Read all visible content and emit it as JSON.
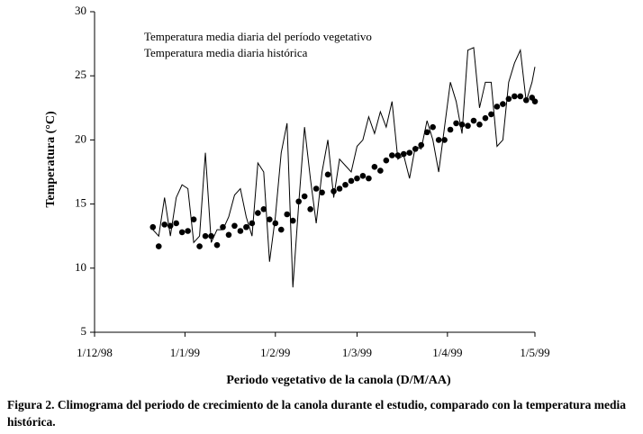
{
  "chart_data": {
    "type": "line",
    "y_label": "Temperatura (°C)",
    "x_label": "Periodo vegetativo de la canola (D/M/AA)",
    "caption": "Figura 2. Climograma del periodo de crecimiento de la canola durante el estudio, comparado con la temperatura media histórica.",
    "x": [
      "1998-12-21",
      "1998-12-23",
      "1998-12-25",
      "1998-12-27",
      "1998-12-29",
      "1998-12-31",
      "1999-01-02",
      "1999-01-04",
      "1999-01-06",
      "1999-01-08",
      "1999-01-10",
      "1999-01-12",
      "1999-01-14",
      "1999-01-16",
      "1999-01-18",
      "1999-01-20",
      "1999-01-22",
      "1999-01-24",
      "1999-01-26",
      "1999-01-28",
      "1999-01-30",
      "1999-02-01",
      "1999-02-03",
      "1999-02-05",
      "1999-02-07",
      "1999-02-09",
      "1999-02-11",
      "1999-02-13",
      "1999-02-15",
      "1999-02-17",
      "1999-02-19",
      "1999-02-21",
      "1999-02-23",
      "1999-02-25",
      "1999-02-27",
      "1999-03-01",
      "1999-03-03",
      "1999-03-05",
      "1999-03-07",
      "1999-03-09",
      "1999-03-11",
      "1999-03-13",
      "1999-03-15",
      "1999-03-17",
      "1999-03-19",
      "1999-03-21",
      "1999-03-23",
      "1999-03-25",
      "1999-03-27",
      "1999-03-29",
      "1999-03-31",
      "1999-04-02",
      "1999-04-04",
      "1999-04-06",
      "1999-04-08",
      "1999-04-10",
      "1999-04-12",
      "1999-04-14",
      "1999-04-16",
      "1999-04-18",
      "1999-04-20",
      "1999-04-22",
      "1999-04-24",
      "1999-04-26",
      "1999-04-28",
      "1999-04-30",
      "1999-05-01"
    ],
    "series": [
      {
        "name": "Temperatura media diaria del período vegetativo",
        "style": "line",
        "color": "#000000",
        "values": [
          13,
          12.5,
          15.5,
          12.5,
          15.5,
          16.5,
          16.2,
          12,
          12.5,
          19,
          12,
          13,
          13,
          14,
          15.7,
          16.2,
          14,
          12.5,
          18.2,
          17.5,
          10.5,
          14,
          19,
          21.3,
          8.5,
          15,
          21,
          17,
          13.5,
          17.5,
          20,
          15.5,
          18.5,
          18,
          17.5,
          19.5,
          20,
          21.8,
          20.5,
          22.2,
          21,
          23,
          18.5,
          18.8,
          17,
          19.5,
          19.3,
          21.5,
          20,
          17.5,
          21,
          24.5,
          23,
          20.5,
          27,
          27.2,
          22.5,
          24.5,
          24.5,
          19.5,
          20,
          24.5,
          26,
          27,
          23,
          24.5,
          25.7
        ]
      },
      {
        "name": "Temperatura media diaria histórica",
        "style": "dots",
        "color": "#000000",
        "values": [
          13.2,
          11.7,
          13.4,
          13.3,
          13.5,
          12.8,
          12.9,
          13.8,
          11.7,
          12.5,
          12.5,
          11.8,
          13.2,
          12.6,
          13.3,
          12.9,
          13.2,
          13.5,
          14.3,
          14.6,
          13.8,
          13.5,
          13,
          14.2,
          13.7,
          15.2,
          15.6,
          14.6,
          16.2,
          15.9,
          17.3,
          16,
          16.2,
          16.5,
          16.8,
          17,
          17.2,
          17,
          17.9,
          17.6,
          18.4,
          18.8,
          18.8,
          18.9,
          19,
          19.3,
          19.6,
          20.6,
          21,
          20,
          20,
          20.8,
          21.3,
          21.2,
          21.1,
          21.5,
          21.2,
          21.7,
          22,
          22.6,
          22.8,
          23.2,
          23.4,
          23.4,
          23.1,
          23.3,
          23
        ]
      }
    ],
    "xlim": [
      "1998-12-01",
      "1999-05-01"
    ],
    "xticks": [
      {
        "value": "1998-12-01",
        "label": "1/12/98"
      },
      {
        "value": "1999-01-01",
        "label": "1/1/99"
      },
      {
        "value": "1999-02-01",
        "label": "1/2/99"
      },
      {
        "value": "1999-03-01",
        "label": "1/3/99"
      },
      {
        "value": "1999-04-01",
        "label": "1/4/99"
      },
      {
        "value": "1999-05-01",
        "label": "1/5/99"
      }
    ],
    "ylim": [
      5,
      30
    ],
    "yticks": [
      5,
      10,
      15,
      20,
      25,
      30
    ],
    "grid": false
  }
}
